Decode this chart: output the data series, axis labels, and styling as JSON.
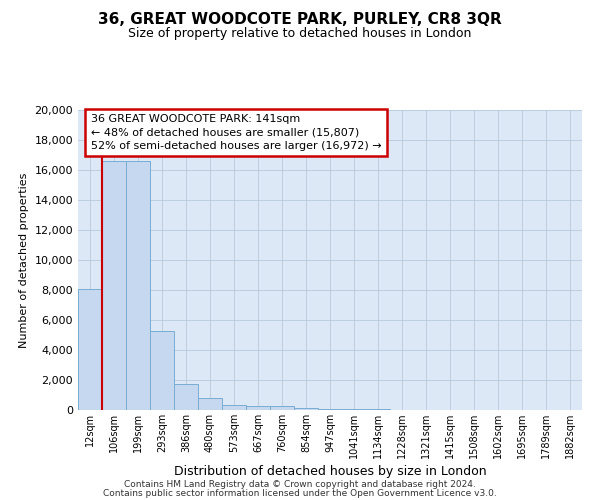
{
  "title": "36, GREAT WOODCOTE PARK, PURLEY, CR8 3QR",
  "subtitle": "Size of property relative to detached houses in London",
  "xlabel": "Distribution of detached houses by size in London",
  "ylabel": "Number of detached properties",
  "bar_labels": [
    "12sqm",
    "106sqm",
    "199sqm",
    "293sqm",
    "386sqm",
    "480sqm",
    "573sqm",
    "667sqm",
    "760sqm",
    "854sqm",
    "947sqm",
    "1041sqm",
    "1134sqm",
    "1228sqm",
    "1321sqm",
    "1415sqm",
    "1508sqm",
    "1602sqm",
    "1695sqm",
    "1789sqm",
    "1882sqm"
  ],
  "bar_values": [
    8100,
    16600,
    16600,
    5300,
    1750,
    800,
    350,
    300,
    300,
    150,
    80,
    60,
    40,
    20,
    15,
    10,
    8,
    6,
    5,
    4,
    3
  ],
  "bar_color": "#c5d8f0",
  "bar_edge_color": "#7aadd4",
  "highlight_bar_index": 1,
  "highlight_color": "#cc0000",
  "ylim": [
    0,
    20000
  ],
  "yticks": [
    0,
    2000,
    4000,
    6000,
    8000,
    10000,
    12000,
    14000,
    16000,
    18000,
    20000
  ],
  "annotation_text": "36 GREAT WOODCOTE PARK: 141sqm\n← 48% of detached houses are smaller (15,807)\n52% of semi-detached houses are larger (16,972) →",
  "annotation_box_color": "#ffffff",
  "annotation_box_edge_color": "#cc0000",
  "footer_line1": "Contains HM Land Registry data © Crown copyright and database right 2024.",
  "footer_line2": "Contains public sector information licensed under the Open Government Licence v3.0.",
  "background_color": "#ffffff",
  "plot_bg_color": "#dce8f5",
  "grid_color": "#b0c4d8"
}
